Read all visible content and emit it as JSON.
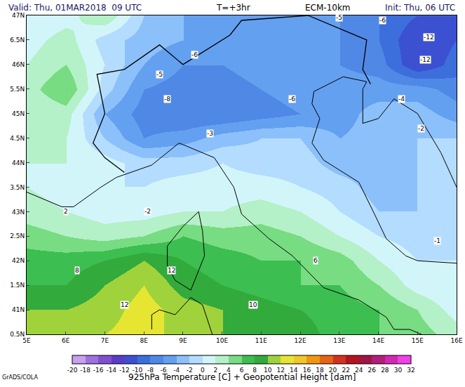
{
  "chart_data": {
    "type": "heatmap",
    "header": {
      "valid": "Valid: Thu, 01MAR2018  09 UTC",
      "step": "T=+3hr",
      "model": "ECM-10km",
      "init": "Init: Thu, 06 UTC"
    },
    "title": "925hPa Temperature [C] + Geopotential Height [dam]",
    "credit": "GrADS/COLA",
    "x": [
      5,
      6,
      7,
      8,
      9,
      10,
      11,
      12,
      13,
      14,
      15,
      16
    ],
    "y": [
      40.5,
      41,
      41.5,
      42,
      42.5,
      43,
      43.5,
      44,
      44.5,
      45,
      45.5,
      46,
      46.5,
      47
    ],
    "values": [
      [
        11,
        11,
        12,
        13,
        11,
        10,
        10,
        9,
        7,
        6,
        5,
        3
      ],
      [
        10,
        10,
        11,
        13,
        11,
        10,
        9,
        8,
        7,
        6,
        4,
        1
      ],
      [
        8,
        8,
        10,
        12,
        9,
        8,
        7,
        6,
        6,
        4,
        1,
        0
      ],
      [
        7,
        7,
        8,
        10,
        8,
        7,
        6,
        6,
        5,
        2,
        0,
        0
      ],
      [
        5,
        4,
        3,
        4,
        6,
        5,
        5,
        4,
        2,
        0,
        -1,
        -1
      ],
      [
        3,
        2,
        1,
        1,
        2,
        2,
        3,
        2,
        0,
        -2,
        -2,
        -1
      ],
      [
        2,
        1,
        0,
        0,
        1,
        1,
        1,
        0,
        -1,
        -3,
        -2,
        -1
      ],
      [
        2,
        2,
        1,
        -1,
        -1,
        0,
        -1,
        -1,
        -3,
        -3,
        -2,
        -1
      ],
      [
        2,
        2,
        -2,
        -6,
        -5,
        -3,
        -2,
        -2,
        -4,
        -3,
        -2,
        -2
      ],
      [
        2,
        3,
        -4,
        -7,
        -8,
        -8,
        -7,
        -6,
        -5,
        -3,
        -3,
        -5
      ],
      [
        3,
        6,
        -1,
        -6,
        -7,
        -7,
        -6,
        -5,
        -5,
        -5,
        -5,
        -7
      ],
      [
        2,
        4,
        0,
        -4,
        -6,
        -6,
        -5,
        -5,
        -6,
        -7,
        -12,
        -9
      ],
      [
        1,
        3,
        -1,
        -3,
        -4,
        -5,
        -5,
        -5,
        -6,
        -8,
        -12,
        -10
      ],
      [
        0,
        1,
        4,
        -2,
        -4,
        -5,
        -5,
        -6,
        -6,
        -8,
        -10,
        -10
      ]
    ],
    "xlim": [
      5,
      16
    ],
    "ylim": [
      40.5,
      47
    ],
    "xticks": [
      {
        "value": 5,
        "label": "5E"
      },
      {
        "value": 6,
        "label": "6E"
      },
      {
        "value": 7,
        "label": "7E"
      },
      {
        "value": 8,
        "label": "8E"
      },
      {
        "value": 9,
        "label": "9E"
      },
      {
        "value": 10,
        "label": "10E"
      },
      {
        "value": 11,
        "label": "11E"
      },
      {
        "value": 12,
        "label": "12E"
      },
      {
        "value": 13,
        "label": "13E"
      },
      {
        "value": 14,
        "label": "14E"
      },
      {
        "value": 15,
        "label": "15E"
      },
      {
        "value": 16,
        "label": "16E"
      }
    ],
    "yticks": [
      {
        "value": 40.5,
        "label": "0.5N"
      },
      {
        "value": 41,
        "label": "41N"
      },
      {
        "value": 41.5,
        "label": "1.5N"
      },
      {
        "value": 42,
        "label": "42N"
      },
      {
        "value": 42.5,
        "label": "2.5N"
      },
      {
        "value": 43,
        "label": "43N"
      },
      {
        "value": 43.5,
        "label": "3.5N"
      },
      {
        "value": 44,
        "label": "44N"
      },
      {
        "value": 44.5,
        "label": "4.5N"
      },
      {
        "value": 45,
        "label": "45N"
      },
      {
        "value": 45.5,
        "label": "5.5N"
      },
      {
        "value": 46,
        "label": "46N"
      },
      {
        "value": 46.5,
        "label": "6.5N"
      },
      {
        "value": 47,
        "label": "47N"
      }
    ],
    "grid": false,
    "colorbar": {
      "range": [
        -20,
        32
      ],
      "ticks": [
        -20,
        -18,
        -16,
        -14,
        -12,
        -10,
        -8,
        -6,
        -4,
        -2,
        0,
        2,
        4,
        6,
        8,
        10,
        12,
        14,
        16,
        18,
        20,
        22,
        24,
        26,
        28,
        30,
        32
      ],
      "colors": [
        "#c8a0f0",
        "#a070e0",
        "#8050d0",
        "#5a3cc8",
        "#3c50d2",
        "#3c6edc",
        "#5088e6",
        "#64a0f0",
        "#8cc0fa",
        "#b4dcff",
        "#d2f5fa",
        "#b4f0c8",
        "#78dc82",
        "#3cbe50",
        "#32aa3c",
        "#a0d23c",
        "#e6e632",
        "#f0c828",
        "#f09614",
        "#e66414",
        "#d2321e",
        "#b4141e",
        "#a01446",
        "#b41e78",
        "#d228b4",
        "#f040e6"
      ]
    },
    "annotations": [
      {
        "lon": 15.3,
        "lat": 46.55,
        "value": -12
      },
      {
        "lon": 15.2,
        "lat": 46.1,
        "value": -12
      },
      {
        "lon": 14.1,
        "lat": 46.9,
        "value": -6
      },
      {
        "lon": 13.0,
        "lat": 46.95,
        "value": -5
      },
      {
        "lon": 9.3,
        "lat": 46.2,
        "value": -6
      },
      {
        "lon": 8.4,
        "lat": 45.8,
        "value": -5
      },
      {
        "lon": 8.6,
        "lat": 45.3,
        "value": -8
      },
      {
        "lon": 11.8,
        "lat": 45.3,
        "value": -6
      },
      {
        "lon": 14.6,
        "lat": 45.3,
        "value": -4
      },
      {
        "lon": 15.1,
        "lat": 44.7,
        "value": -2
      },
      {
        "lon": 9.7,
        "lat": 44.6,
        "value": -3
      },
      {
        "lon": 15.5,
        "lat": 42.4,
        "value": -1
      },
      {
        "lon": 8.1,
        "lat": 43.0,
        "value": -2
      },
      {
        "lon": 6.0,
        "lat": 43.0,
        "value": 2
      },
      {
        "lon": 6.3,
        "lat": 41.8,
        "value": 8
      },
      {
        "lon": 7.5,
        "lat": 41.1,
        "value": 12
      },
      {
        "lon": 8.7,
        "lat": 41.8,
        "value": 12
      },
      {
        "lon": 10.8,
        "lat": 41.1,
        "value": 10
      },
      {
        "lon": 12.4,
        "lat": 42.0,
        "value": 6
      }
    ],
    "coastlines": [
      {
        "lon": [
          5.0,
          5.3,
          5.9,
          6.2,
          6.9,
          7.3,
          8.2,
          8.9,
          9.8,
          10.3,
          10.5,
          11.2,
          11.8,
          12.6,
          13.5,
          14.2,
          14.4,
          14.8,
          15.1
        ],
        "lat": [
          43.4,
          43.3,
          43.1,
          43.1,
          43.5,
          43.7,
          43.95,
          44.4,
          44.1,
          43.5,
          42.95,
          42.45,
          42.1,
          41.45,
          41.2,
          40.85,
          40.6,
          40.6,
          40.5
        ]
      },
      {
        "lon": [
          16.0,
          15.0,
          14.7,
          14.2,
          13.9,
          13.5,
          12.9,
          12.6,
          12.3,
          12.5,
          12.3,
          12.35,
          13.1,
          13.7,
          13.6,
          13.6,
          14.0,
          14.4,
          15.0,
          15.6,
          16.0
        ],
        "lat": [
          41.95,
          42.0,
          42.1,
          42.45,
          42.95,
          43.6,
          43.9,
          44.05,
          44.4,
          44.9,
          45.2,
          45.45,
          45.75,
          45.65,
          45.5,
          44.8,
          44.9,
          45.3,
          45.0,
          44.2,
          43.5
        ]
      },
      {
        "lon": [
          9.4,
          9.5,
          9.55,
          9.2,
          8.8,
          8.6,
          8.6,
          9.0,
          9.4
        ],
        "lat": [
          43.0,
          42.6,
          42.1,
          41.4,
          41.6,
          41.9,
          42.3,
          42.7,
          43.0
        ]
      },
      {
        "lon": [
          8.2,
          8.2,
          8.4,
          8.8,
          9.2,
          9.5,
          9.75
        ],
        "lat": [
          40.6,
          40.9,
          41.0,
          40.9,
          41.25,
          41.1,
          40.5
        ]
      }
    ],
    "borders": [
      {
        "lon": [
          7.5,
          7.0,
          6.7,
          7.0,
          6.8,
          7.5,
          8.4,
          9.0,
          10.2,
          10.5,
          12.2,
          13.7,
          13.6,
          13.8
        ],
        "lat": [
          43.8,
          44.1,
          44.4,
          45.0,
          45.8,
          45.9,
          46.4,
          46.0,
          46.6,
          46.9,
          47.0,
          46.5,
          45.9,
          45.6
        ]
      }
    ]
  }
}
